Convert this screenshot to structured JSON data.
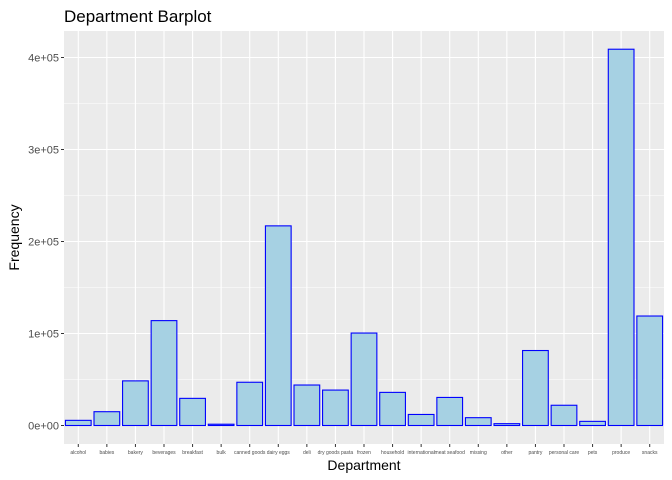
{
  "chart_data": {
    "type": "bar",
    "title": "Department Barplot",
    "xlabel": "Department",
    "ylabel": "Frequency",
    "categories": [
      "alcohol",
      "babies",
      "bakery",
      "beverages",
      "breakfast",
      "bulk",
      "canned goods",
      "dairy eggs",
      "deli",
      "dry goods pasta",
      "frozen",
      "household",
      "international",
      "meat seafood",
      "missing",
      "other",
      "pantry",
      "personal care",
      "pets",
      "produce",
      "snacks"
    ],
    "values": [
      5600,
      15000,
      48500,
      114000,
      29500,
      1400,
      47000,
      217000,
      44000,
      38500,
      100500,
      36000,
      12000,
      30500,
      8500,
      2000,
      81500,
      22000,
      4500,
      409000,
      119000
    ],
    "ylim": [
      0,
      435000
    ],
    "yticks": [
      0,
      100000,
      200000,
      300000,
      400000
    ],
    "ytick_labels": [
      "0e+00",
      "1e+05",
      "2e+05",
      "3e+05",
      "4e+05"
    ],
    "grid": true,
    "colors": {
      "bar_fill": "#a6d1e3",
      "bar_stroke": "#0000ff",
      "panel": "#ebebeb",
      "grid": "#ffffff"
    }
  }
}
